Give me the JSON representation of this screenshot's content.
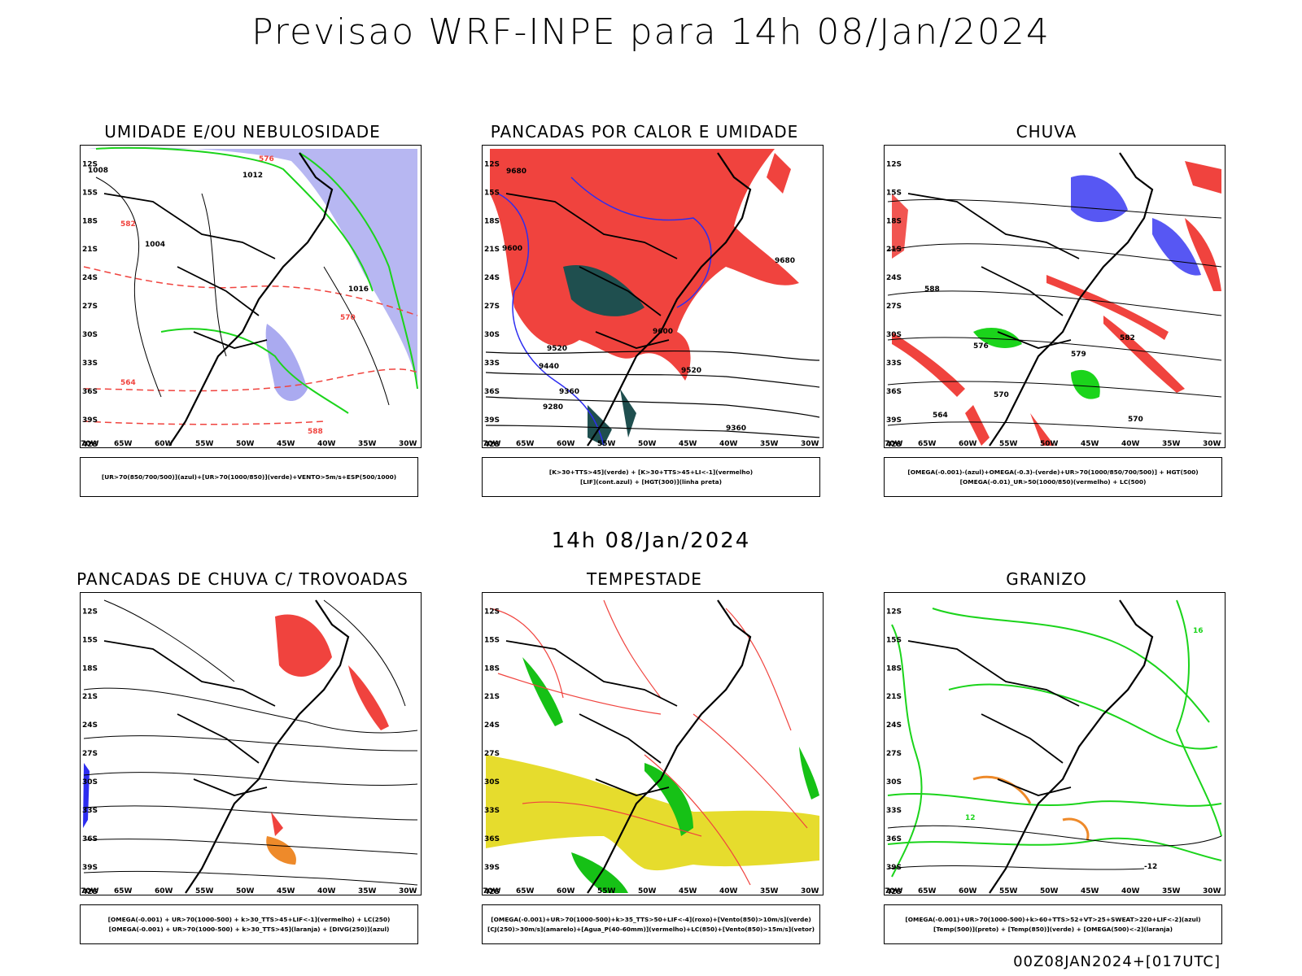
{
  "header": {
    "title": "Previsao WRF-INPE  para 14h 08/Jan/2024"
  },
  "mid_label": "14h 08/Jan/2024",
  "footer": "00Z08JAN2024+[017UTC]",
  "axes": {
    "lat_ticks": [
      "12S",
      "15S",
      "18S",
      "21S",
      "24S",
      "27S",
      "30S",
      "33S",
      "36S",
      "39S",
      "42S"
    ],
    "lon_ticks": [
      "70W",
      "65W",
      "60W",
      "55W",
      "50W",
      "45W",
      "40W",
      "35W",
      "30W"
    ],
    "lat_range": [
      -42,
      -10
    ],
    "lon_range": [
      -70,
      -28
    ]
  },
  "colors": {
    "red": "#f0433e",
    "green": "#1bd41b",
    "blue": "#2d2df0",
    "lilac": "#aaaaf0",
    "darkgreen": "#1f4f4f",
    "yellow": "#e6dc2d",
    "orange": "#ee8a2a",
    "brightgreen": "#16c116"
  },
  "panels": [
    {
      "title": "UMIDADE E/OU NEBULOSIDADE",
      "legend": [
        "[UR>70(850/700/500)](azul)+[UR>70(1000/850)](verde)+VENTO>5m/s+ESP(500/1000)"
      ]
    },
    {
      "title": "PANCADAS POR CALOR E UMIDADE",
      "legend": [
        "[K>30+TTS>45](verde) + [K>30+TTS>45+LI<-1](vermelho)",
        "[LIF](cont.azul) + [HGT(300)](linha preta)"
      ]
    },
    {
      "title": "CHUVA",
      "legend": [
        "[OMEGA(-0.001)-(azul)+OMEGA(-0.3)-(verde)+UR>70(1000/850/700/500)] + HGT(500)",
        "[OMEGA(-0.01)_UR>50(1000/850)(vermelho) + LC(500)"
      ]
    },
    {
      "title": "PANCADAS DE CHUVA C/ TROVOADAS",
      "legend": [
        "[OMEGA(-0.001) + UR>70(1000-500) + k>30_TTS>45+LIF<-1](vermelho) + LC(250)",
        "[OMEGA(-0.001) + UR>70(1000-500) + k>30_TTS>45](laranja) + [DIVG(250)](azul)"
      ]
    },
    {
      "title": "TEMPESTADE",
      "legend": [
        "[OMEGA(-0.001)+UR>70(1000-500)+k>35_TTS>50+LIF<-4](roxo)+[Vento(850)>10m/s](verde)",
        "[CJ(250)>30m/s](amarelo)+[Agua_P(40-60mm)](vermelho)+LC(850)+[Vento(850)>15m/s](vetor)"
      ]
    },
    {
      "title": "GRANIZO",
      "legend": [
        "[OMEGA(-0.001)+UR>70(1000-500)+k>60+TTS>52+VT>25+SWEAT>220+LIF<-2](azul)",
        "[Temp(500)](preto) + [Temp(850)](verde) + [OMEGA(500)<-2](laranja)"
      ]
    }
  ],
  "contour_labels": {
    "p1": [
      "1008",
      "1012",
      "1004",
      "1016",
      "576",
      "582",
      "570",
      "564",
      "588"
    ],
    "p2": [
      "9680",
      "9600",
      "9520",
      "9440",
      "9360",
      "9280"
    ],
    "p3": [
      "588",
      "582",
      "576",
      "570",
      "564",
      "579"
    ],
    "p6": [
      "12",
      "16",
      "-12"
    ]
  }
}
